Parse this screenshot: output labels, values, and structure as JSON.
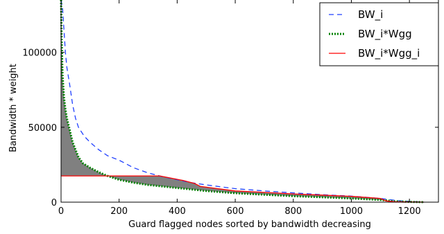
{
  "chart_data": {
    "type": "line",
    "title": "",
    "xlabel": "Guard flagged nodes sorted by bandwidth decreasing",
    "ylabel": "Bandwidth * weight",
    "xlim": [
      0,
      1300
    ],
    "ylim": [
      0,
      135000
    ],
    "xticks": [
      0,
      200,
      400,
      600,
      800,
      1000,
      1200
    ],
    "yticks": [
      0,
      50000,
      100000
    ],
    "legend_position": "top-right",
    "grid": false,
    "fill_between": {
      "between": [
        "BW_i*Wgg",
        "BW_i*Wgg_i"
      ],
      "color": "#808080"
    },
    "series": [
      {
        "name": "BW_i",
        "style": "dashed",
        "color": "#1f3fff",
        "points": [
          [
            0,
            135000
          ],
          [
            5,
            130000
          ],
          [
            10,
            115000
          ],
          [
            15,
            100000
          ],
          [
            20,
            90000
          ],
          [
            30,
            78000
          ],
          [
            40,
            65000
          ],
          [
            50,
            56000
          ],
          [
            60,
            50000
          ],
          [
            80,
            44000
          ],
          [
            100,
            40000
          ],
          [
            130,
            35000
          ],
          [
            160,
            31000
          ],
          [
            200,
            28000
          ],
          [
            250,
            23000
          ],
          [
            300,
            19500
          ],
          [
            350,
            17000
          ],
          [
            400,
            15000
          ],
          [
            450,
            13000
          ],
          [
            500,
            11500
          ],
          [
            600,
            9000
          ],
          [
            700,
            7500
          ],
          [
            800,
            6200
          ],
          [
            900,
            5000
          ],
          [
            1000,
            4000
          ],
          [
            1100,
            2500
          ],
          [
            1150,
            1200
          ],
          [
            1200,
            500
          ],
          [
            1250,
            0
          ]
        ]
      },
      {
        "name": "BW_i*Wgg",
        "style": "dotted",
        "color": "#008000",
        "points": [
          [
            0,
            135000
          ],
          [
            2,
            110000
          ],
          [
            5,
            85000
          ],
          [
            10,
            70000
          ],
          [
            15,
            62000
          ],
          [
            20,
            56000
          ],
          [
            30,
            48000
          ],
          [
            40,
            40000
          ],
          [
            50,
            35000
          ],
          [
            60,
            30000
          ],
          [
            75,
            26000
          ],
          [
            100,
            23000
          ],
          [
            130,
            20000
          ],
          [
            160,
            17500
          ],
          [
            200,
            15000
          ],
          [
            250,
            13000
          ],
          [
            300,
            11500
          ],
          [
            350,
            10500
          ],
          [
            400,
            9500
          ],
          [
            450,
            8500
          ],
          [
            500,
            7500
          ],
          [
            600,
            6000
          ],
          [
            700,
            5000
          ],
          [
            800,
            4000
          ],
          [
            900,
            3300
          ],
          [
            1000,
            2500
          ],
          [
            1100,
            1500
          ],
          [
            1150,
            600
          ],
          [
            1200,
            200
          ],
          [
            1250,
            0
          ]
        ]
      },
      {
        "name": "BW_i*Wgg_i",
        "style": "solid",
        "color": "#ff0000",
        "points": [
          [
            0,
            17500
          ],
          [
            160,
            17500
          ],
          [
            340,
            17500
          ],
          [
            380,
            16000
          ],
          [
            420,
            14500
          ],
          [
            460,
            12500
          ],
          [
            480,
            10500
          ],
          [
            600,
            7500
          ],
          [
            700,
            6500
          ],
          [
            800,
            5500
          ],
          [
            900,
            4700
          ],
          [
            1000,
            3900
          ],
          [
            1100,
            2500
          ],
          [
            1120,
            800
          ],
          [
            1150,
            300
          ],
          [
            1200,
            100
          ],
          [
            1250,
            0
          ]
        ]
      }
    ]
  }
}
